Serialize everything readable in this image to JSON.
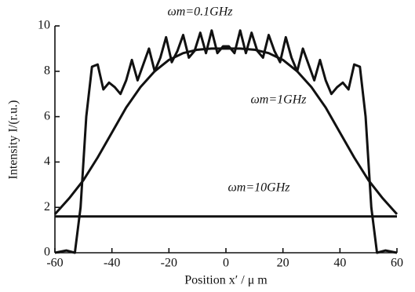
{
  "chart_data": {
    "type": "line",
    "xlabel": "Position x′ / μ m",
    "ylabel": "Intensity I/(r.u.)",
    "xlim": [
      -60,
      60
    ],
    "xticks": [
      -60,
      -40,
      -20,
      0,
      20,
      40,
      60
    ],
    "ylim": [
      0,
      10
    ],
    "yticks": [
      0,
      2,
      4,
      6,
      8,
      10
    ],
    "series": [
      {
        "name": "ωm=0.1GHz",
        "color": "#111111",
        "x": [
          -60,
          -56,
          -53,
          -51,
          -49,
          -47,
          -45,
          -43,
          -41,
          -39,
          -37,
          -35,
          -33,
          -31,
          -29,
          -27,
          -25,
          -23,
          -21,
          -19,
          -17,
          -15,
          -13,
          -11,
          -9,
          -7,
          -5,
          -3,
          -1,
          1,
          3,
          5,
          7,
          9,
          11,
          13,
          15,
          17,
          19,
          21,
          23,
          25,
          27,
          29,
          31,
          33,
          35,
          37,
          39,
          41,
          43,
          45,
          47,
          49,
          51,
          53,
          56,
          60
        ],
        "values": [
          0,
          0.1,
          0,
          2,
          6,
          8.2,
          8.3,
          7.2,
          7.5,
          7.3,
          7,
          7.6,
          8.5,
          7.6,
          8.3,
          9,
          8,
          8.6,
          9.5,
          8.4,
          8.9,
          9.6,
          8.6,
          8.9,
          9.7,
          8.8,
          9.8,
          8.8,
          9.1,
          9.1,
          8.8,
          9.8,
          8.8,
          9.7,
          8.9,
          8.6,
          9.6,
          8.9,
          8.4,
          9.5,
          8.6,
          8,
          9,
          8.3,
          7.6,
          8.5,
          7.6,
          7,
          7.3,
          7.5,
          7.2,
          8.3,
          8.2,
          6,
          2,
          0,
          0.1,
          0
        ]
      },
      {
        "name": "ωm=1GHz",
        "color": "#111111",
        "x": [
          -60,
          -55,
          -50,
          -45,
          -40,
          -35,
          -30,
          -25,
          -20,
          -15,
          -10,
          -5,
          0,
          5,
          10,
          15,
          20,
          25,
          30,
          35,
          40,
          45,
          50,
          55,
          60
        ],
        "values": [
          1.7,
          2.4,
          3.2,
          4.2,
          5.3,
          6.4,
          7.3,
          8,
          8.5,
          8.8,
          8.95,
          9,
          9,
          9,
          8.95,
          8.8,
          8.5,
          8,
          7.3,
          6.4,
          5.3,
          4.2,
          3.2,
          2.4,
          1.7
        ]
      },
      {
        "name": "ωm=10GHz",
        "color": "#111111",
        "x": [
          -60,
          60
        ],
        "values": [
          1.6,
          1.6
        ]
      }
    ]
  }
}
